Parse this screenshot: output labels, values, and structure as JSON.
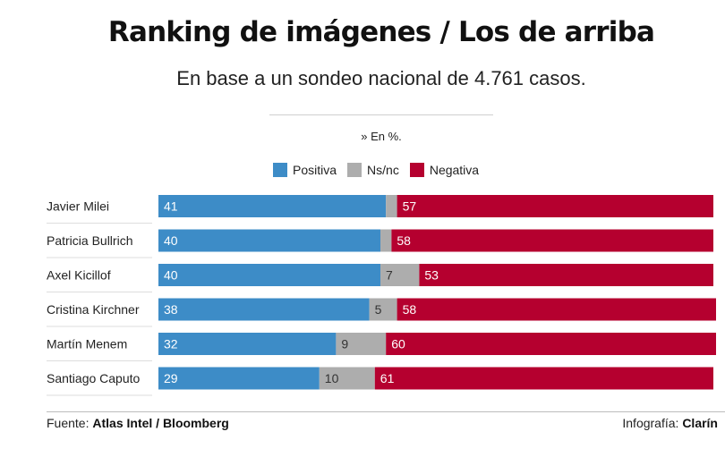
{
  "header": {
    "title": "Ranking de imágenes / Los de arriba",
    "subtitle": "En base a un sondeo nacional de 4.761 casos.",
    "unit": "» En %."
  },
  "colors": {
    "positiva": "#3d8cc7",
    "nsnc": "#adadad",
    "negativa": "#b5002f"
  },
  "legend": [
    {
      "label": "Positiva",
      "color": "#3d8cc7"
    },
    {
      "label": "Ns/nc",
      "color": "#adadad"
    },
    {
      "label": "Negativa",
      "color": "#b5002f"
    }
  ],
  "chart_data": {
    "type": "bar",
    "orientation": "horizontal",
    "stacked": true,
    "categories": [
      "Javier Milei",
      "Patricia Bullrich",
      "Axel Kicillof",
      "Cristina Kirchner",
      "Martín Menem",
      "Santiago Caputo"
    ],
    "series": [
      {
        "name": "Positiva",
        "values": [
          41,
          40,
          40,
          38,
          32,
          29
        ]
      },
      {
        "name": "Ns/nc",
        "values": [
          2,
          2,
          7,
          5,
          9,
          10
        ]
      },
      {
        "name": "Negativa",
        "values": [
          57,
          58,
          53,
          58,
          60,
          61
        ]
      }
    ],
    "shown_labels": {
      "Positiva": [
        "41",
        "40",
        "40",
        "38",
        "32",
        "29"
      ],
      "Ns/nc": [
        "",
        "",
        "7",
        "5",
        "9",
        "10"
      ],
      "Negativa": [
        "57",
        "58",
        "53",
        "58",
        "60",
        "61"
      ]
    }
  },
  "footer": {
    "source_prefix": "Fuente: ",
    "source": "Atlas Intel / Bloomberg",
    "credit_prefix": "Infografía: ",
    "credit": "Clarín"
  }
}
